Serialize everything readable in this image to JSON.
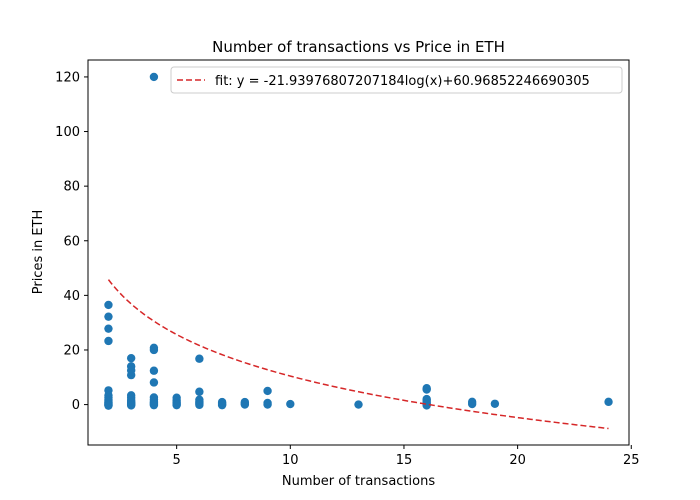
{
  "chart_data": {
    "type": "scatter",
    "title": "Number of transactions vs Price in ETH",
    "xlabel": "Number of transactions",
    "ylabel": "Prices in ETH",
    "xlim": [
      1.1,
      24.9
    ],
    "ylim": [
      -14.8,
      126.2
    ],
    "x_ticks": [
      5,
      10,
      15,
      20,
      25
    ],
    "y_ticks": [
      0,
      20,
      40,
      60,
      80,
      100,
      120
    ],
    "grid": false,
    "legend_position": "top-right",
    "colors": {
      "points": "#1f77b4",
      "fit": "#d62728"
    },
    "fit": {
      "label": "fit: y = -21.93976807207184log(x)+60.96852246690305",
      "a": -21.93976807207184,
      "b": 60.96852246690305,
      "x_range": [
        2,
        24
      ]
    },
    "series": [
      {
        "points": [
          [
            2,
            36.5
          ],
          [
            2,
            32.2
          ],
          [
            2,
            27.8
          ],
          [
            2,
            23.3
          ],
          [
            2,
            5.2
          ],
          [
            2,
            3.4
          ],
          [
            2,
            2.6
          ],
          [
            2,
            1.9
          ],
          [
            2,
            1.4
          ],
          [
            2,
            1.0
          ],
          [
            2,
            0.7
          ],
          [
            2,
            0.4
          ],
          [
            2,
            0.2
          ],
          [
            2,
            0.0
          ],
          [
            2,
            -0.2
          ],
          [
            2,
            -0.4
          ],
          [
            3,
            17.0
          ],
          [
            3,
            14.0
          ],
          [
            3,
            12.5
          ],
          [
            3,
            10.8
          ],
          [
            3,
            3.4
          ],
          [
            3,
            2.5
          ],
          [
            3,
            1.6
          ],
          [
            3,
            1.0
          ],
          [
            3,
            0.6
          ],
          [
            3,
            0.3
          ],
          [
            3,
            0.0
          ],
          [
            3,
            -0.3
          ],
          [
            4,
            120.0
          ],
          [
            4,
            20.8
          ],
          [
            4,
            20.0
          ],
          [
            4,
            12.4
          ],
          [
            4,
            8.1
          ],
          [
            4,
            2.6
          ],
          [
            4,
            1.8
          ],
          [
            4,
            1.2
          ],
          [
            4,
            0.7
          ],
          [
            4,
            0.4
          ],
          [
            4,
            0.1
          ],
          [
            4,
            -0.2
          ],
          [
            5,
            2.5
          ],
          [
            5,
            1.5
          ],
          [
            5,
            0.9
          ],
          [
            5,
            0.5
          ],
          [
            5,
            0.1
          ],
          [
            5,
            -0.2
          ],
          [
            6,
            16.8
          ],
          [
            6,
            4.7
          ],
          [
            6,
            1.8
          ],
          [
            6,
            1.2
          ],
          [
            6,
            0.7
          ],
          [
            6,
            0.3
          ],
          [
            6,
            -0.1
          ],
          [
            7,
            0.9
          ],
          [
            7,
            0.4
          ],
          [
            7,
            0.1
          ],
          [
            7,
            -0.2
          ],
          [
            8,
            0.9
          ],
          [
            8,
            0.4
          ],
          [
            8,
            0.0
          ],
          [
            9,
            5.0
          ],
          [
            9,
            0.6
          ],
          [
            9,
            0.0
          ],
          [
            10,
            0.2
          ],
          [
            13,
            0.0
          ],
          [
            16,
            6.0
          ],
          [
            16,
            5.5
          ],
          [
            16,
            2.0
          ],
          [
            16,
            1.5
          ],
          [
            16,
            1.0
          ],
          [
            16,
            0.5
          ],
          [
            16,
            0.0
          ],
          [
            16,
            -0.3
          ],
          [
            18,
            1.0
          ],
          [
            18,
            0.2
          ],
          [
            19,
            0.3
          ],
          [
            24,
            1.0
          ]
        ]
      }
    ]
  }
}
